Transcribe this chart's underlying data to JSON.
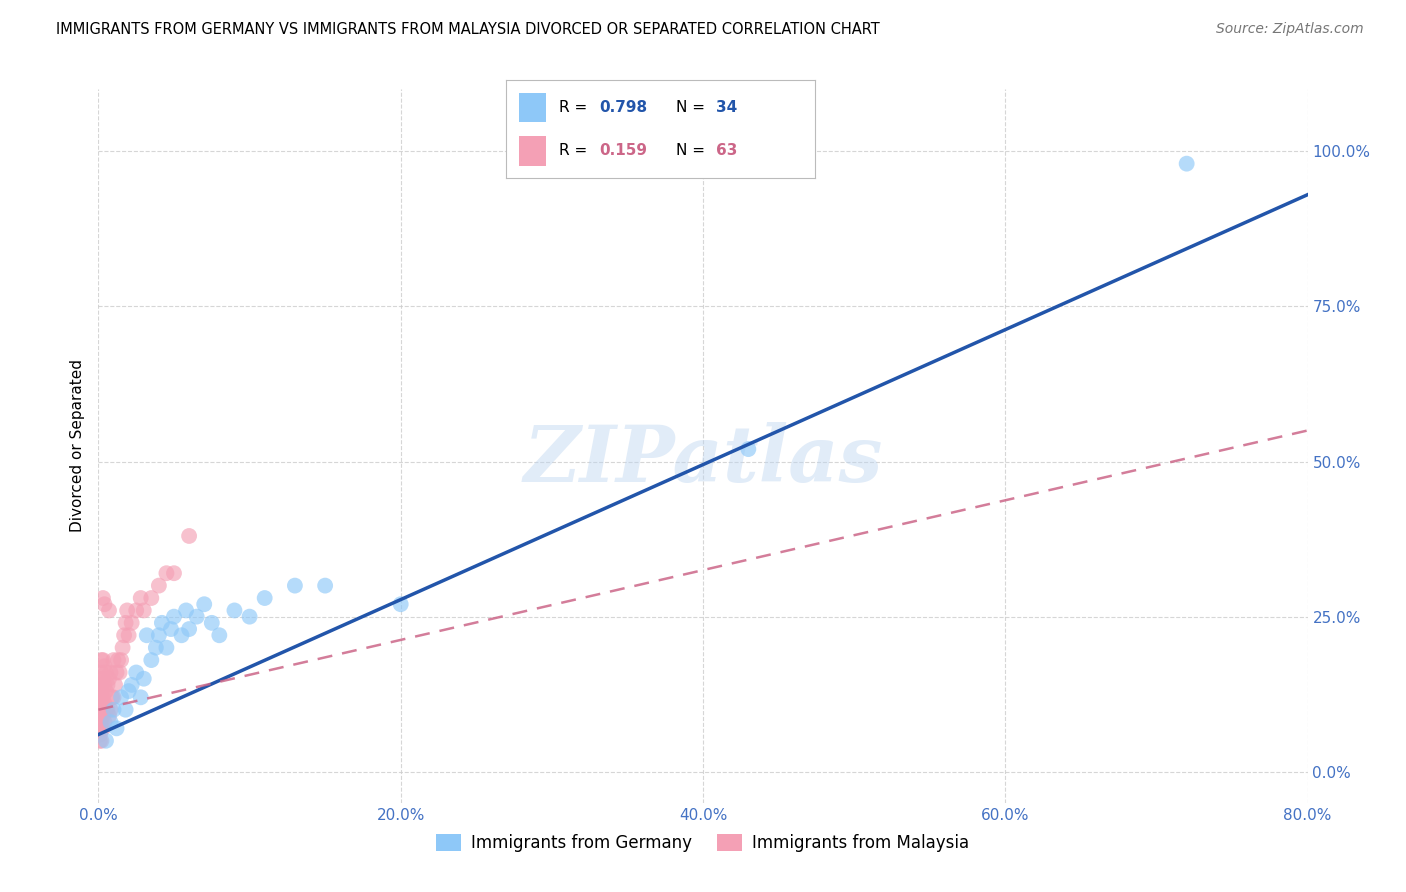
{
  "title": "IMMIGRANTS FROM GERMANY VS IMMIGRANTS FROM MALAYSIA DIVORCED OR SEPARATED CORRELATION CHART",
  "source": "Source: ZipAtlas.com",
  "tick_color": "#4472c4",
  "ylabel": "Divorced or Separated",
  "xlim": [
    0.0,
    0.8
  ],
  "ylim": [
    -0.05,
    1.1
  ],
  "xtick_values": [
    0.0,
    0.2,
    0.4,
    0.6,
    0.8
  ],
  "ytick_values": [
    0.0,
    0.25,
    0.5,
    0.75,
    1.0
  ],
  "germany_color": "#8EC8F8",
  "malaysia_color": "#F4A0B5",
  "germany_R": 0.798,
  "germany_N": 34,
  "malaysia_R": 0.159,
  "malaysia_N": 63,
  "germany_line_color": "#2255AA",
  "malaysia_line_color": "#CC6688",
  "watermark": "ZIPatlas",
  "germany_x": [
    0.005,
    0.008,
    0.01,
    0.012,
    0.015,
    0.018,
    0.02,
    0.022,
    0.025,
    0.028,
    0.03,
    0.032,
    0.035,
    0.038,
    0.04,
    0.042,
    0.045,
    0.048,
    0.05,
    0.055,
    0.058,
    0.06,
    0.065,
    0.07,
    0.075,
    0.08,
    0.09,
    0.1,
    0.11,
    0.13,
    0.15,
    0.2,
    0.43,
    0.72
  ],
  "germany_y": [
    0.05,
    0.08,
    0.1,
    0.07,
    0.12,
    0.1,
    0.13,
    0.14,
    0.16,
    0.12,
    0.15,
    0.22,
    0.18,
    0.2,
    0.22,
    0.24,
    0.2,
    0.23,
    0.25,
    0.22,
    0.26,
    0.23,
    0.25,
    0.27,
    0.24,
    0.22,
    0.26,
    0.25,
    0.28,
    0.3,
    0.3,
    0.27,
    0.52,
    0.98
  ],
  "malaysia_x": [
    0.001,
    0.001,
    0.001,
    0.001,
    0.001,
    0.001,
    0.001,
    0.001,
    0.001,
    0.001,
    0.002,
    0.002,
    0.002,
    0.002,
    0.002,
    0.002,
    0.002,
    0.002,
    0.002,
    0.002,
    0.003,
    0.003,
    0.003,
    0.003,
    0.003,
    0.004,
    0.004,
    0.004,
    0.004,
    0.005,
    0.005,
    0.005,
    0.006,
    0.006,
    0.007,
    0.007,
    0.008,
    0.008,
    0.009,
    0.01,
    0.01,
    0.011,
    0.012,
    0.013,
    0.014,
    0.015,
    0.016,
    0.017,
    0.018,
    0.019,
    0.02,
    0.022,
    0.025,
    0.028,
    0.03,
    0.035,
    0.04,
    0.045,
    0.05,
    0.06,
    0.007,
    0.004,
    0.003
  ],
  "malaysia_y": [
    0.05,
    0.06,
    0.07,
    0.08,
    0.09,
    0.1,
    0.11,
    0.12,
    0.13,
    0.14,
    0.05,
    0.07,
    0.08,
    0.1,
    0.11,
    0.12,
    0.13,
    0.15,
    0.16,
    0.18,
    0.07,
    0.09,
    0.12,
    0.15,
    0.18,
    0.08,
    0.11,
    0.14,
    0.17,
    0.1,
    0.13,
    0.16,
    0.1,
    0.14,
    0.09,
    0.15,
    0.1,
    0.16,
    0.12,
    0.12,
    0.18,
    0.14,
    0.16,
    0.18,
    0.16,
    0.18,
    0.2,
    0.22,
    0.24,
    0.26,
    0.22,
    0.24,
    0.26,
    0.28,
    0.26,
    0.28,
    0.3,
    0.32,
    0.32,
    0.38,
    0.26,
    0.27,
    0.28
  ],
  "germany_line_x0": 0.0,
  "germany_line_y0": 0.06,
  "germany_line_x1": 0.8,
  "germany_line_y1": 0.93,
  "malaysia_line_x0": 0.0,
  "malaysia_line_y0": 0.1,
  "malaysia_line_x1": 0.8,
  "malaysia_line_y1": 0.55
}
